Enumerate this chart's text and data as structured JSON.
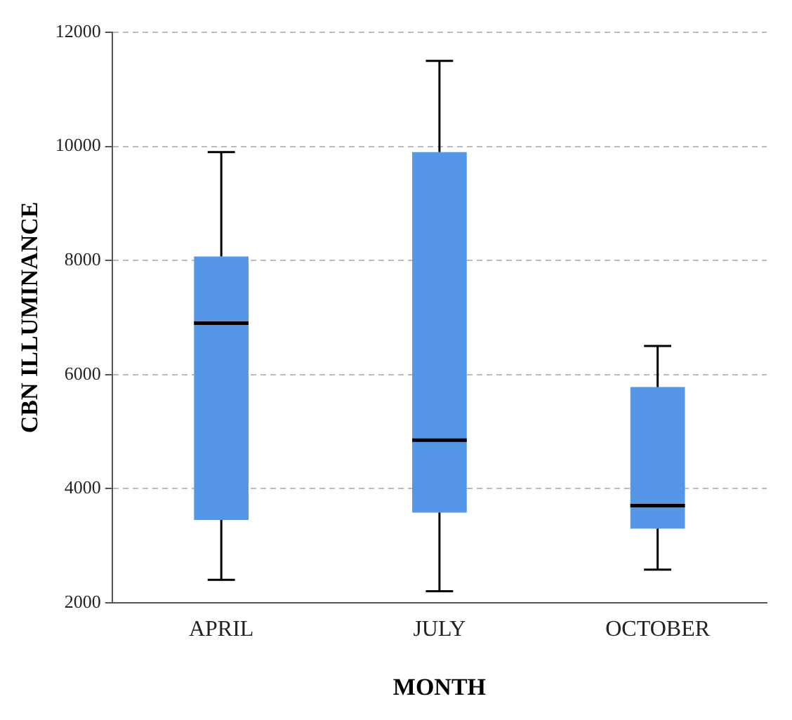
{
  "chart_data": {
    "type": "box",
    "xlabel": "MONTH",
    "ylabel": "CBN ILLUMINANCE",
    "categories": [
      "APRIL",
      "JULY",
      "OCTOBER"
    ],
    "color": "#5596e6",
    "boxes": [
      {
        "low": 2400,
        "q1": 3450,
        "median": 6900,
        "q3": 8070,
        "high": 9900
      },
      {
        "low": 2200,
        "q1": 3580,
        "median": 4850,
        "q3": 9900,
        "high": 11500
      },
      {
        "low": 2580,
        "q1": 3300,
        "median": 3700,
        "q3": 5780,
        "high": 6500
      }
    ],
    "ylim": [
      2000,
      12000
    ],
    "yticks": [
      2000,
      4000,
      6000,
      8000,
      10000,
      12000
    ],
    "grid": "y"
  }
}
